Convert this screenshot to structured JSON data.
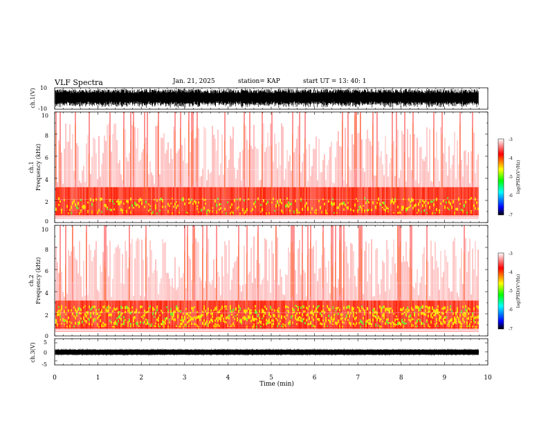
{
  "header": {
    "title": "VLF Spectra",
    "date": "Jan. 21, 2025",
    "station": "station= KAP",
    "start": "start UT = 13: 40: 1"
  },
  "colors": {
    "colormap": [
      "#000000",
      "#0000ff",
      "#00ffff",
      "#00ff00",
      "#ffff00",
      "#ff0000",
      "#ffffff"
    ]
  },
  "chart_data": [
    {
      "type": "line",
      "ylabel": "ch.1(V)",
      "ylim": [
        -10,
        10
      ],
      "y_ticks": [
        "10",
        "-10"
      ],
      "xlim": [
        0,
        10
      ]
    },
    {
      "type": "heatmap",
      "ylabel_line1": "ch.1",
      "ylabel_line2": "Frequency (kHz)",
      "ylim": [
        0,
        10
      ],
      "y_ticks": [
        "0",
        "2",
        "4",
        "6",
        "8",
        "10"
      ],
      "xlim": [
        0,
        10
      ],
      "colorbar": {
        "label": "log(PSD)(V²/Hz)",
        "ticks": [
          "-3",
          "-4",
          "-5",
          "-6",
          "-7"
        ],
        "range": [
          -7,
          -3
        ]
      }
    },
    {
      "type": "heatmap",
      "ylabel_line1": "ch.2",
      "ylabel_line2": "Frequency (kHz)",
      "ylim": [
        0,
        10
      ],
      "y_ticks": [
        "0",
        "2",
        "4",
        "6",
        "8",
        "10"
      ],
      "xlim": [
        0,
        10
      ],
      "colorbar": {
        "label": "log(PSD)(V²/Hz)",
        "ticks": [
          "-3",
          "-4",
          "-5",
          "-6",
          "-7"
        ],
        "range": [
          -7,
          -3
        ]
      }
    },
    {
      "type": "line",
      "ylabel": "ch.3(V)",
      "ylim": [
        -5,
        5
      ],
      "y_ticks": [
        "5",
        "0",
        "-5"
      ],
      "xlim": [
        0,
        10
      ],
      "xlabel": "Time (min)",
      "x_ticks": [
        "0",
        "1",
        "2",
        "3",
        "4",
        "5",
        "6",
        "7",
        "8",
        "9",
        "10"
      ]
    }
  ]
}
